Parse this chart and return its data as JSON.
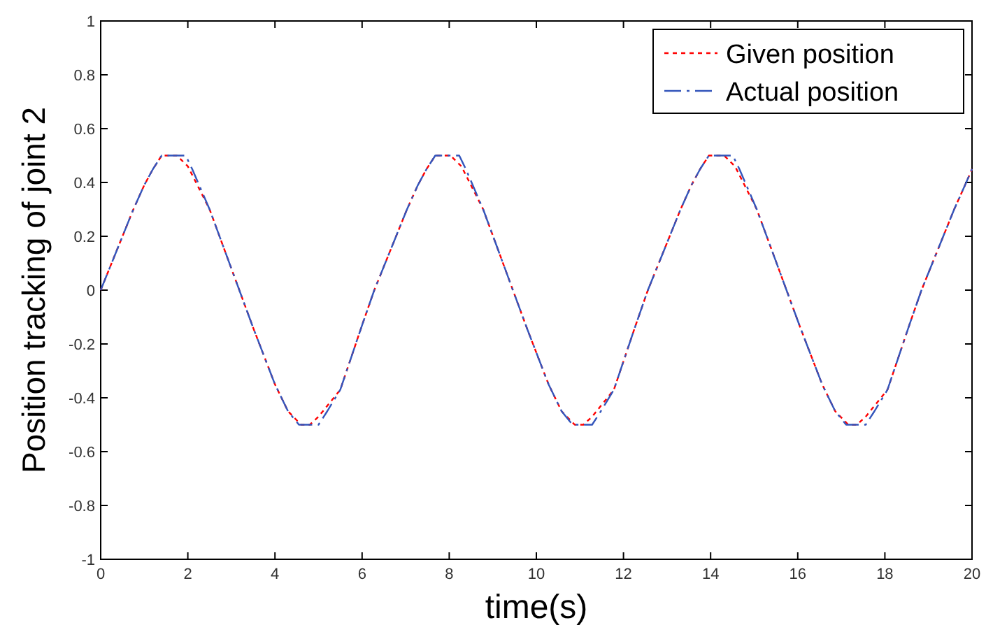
{
  "chart_data": {
    "type": "line",
    "xlabel": "time(s)",
    "ylabel": "Position tracking of joint 2",
    "xlim": [
      0,
      20
    ],
    "ylim": [
      -1,
      1
    ],
    "xticks": [
      0,
      2,
      4,
      6,
      8,
      10,
      12,
      14,
      16,
      18,
      20
    ],
    "yticks": [
      -1,
      -0.8,
      -0.6,
      -0.4,
      -0.2,
      0,
      0.2,
      0.4,
      0.6,
      0.8,
      1
    ],
    "grid": false,
    "legend": "top right",
    "marker": "none",
    "series": [
      {
        "name": "Given position",
        "color": "#ff0000",
        "line_style": "dotted",
        "x": [
          0,
          0.25,
          0.5,
          0.75,
          1.0,
          1.2,
          1.4,
          1.75,
          2.0,
          2.5,
          3.0,
          3.5,
          4.0,
          4.3,
          4.6,
          4.8,
          5.0,
          5.5,
          6.0,
          6.28,
          6.53,
          6.78,
          7.03,
          7.28,
          7.48,
          7.68,
          8.03,
          8.28,
          8.78,
          9.28,
          9.78,
          10.28,
          10.58,
          10.88,
          11.08,
          11.28,
          11.78,
          12.28,
          12.56,
          12.81,
          13.06,
          13.31,
          13.56,
          13.76,
          13.96,
          14.31,
          14.56,
          15.06,
          15.56,
          16.06,
          16.56,
          16.86,
          17.16,
          17.36,
          17.56,
          18.06,
          18.56,
          18.84,
          19.09,
          19.34,
          19.59,
          19.84,
          20
        ],
        "values": [
          0,
          0.1,
          0.2,
          0.3,
          0.39,
          0.45,
          0.5,
          0.5,
          0.46,
          0.3,
          0.08,
          -0.14,
          -0.35,
          -0.45,
          -0.5,
          -0.5,
          -0.47,
          -0.37,
          -0.13,
          0,
          0.1,
          0.2,
          0.3,
          0.39,
          0.45,
          0.5,
          0.5,
          0.46,
          0.3,
          0.08,
          -0.14,
          -0.35,
          -0.45,
          -0.5,
          -0.5,
          -0.47,
          -0.37,
          -0.13,
          0,
          0.1,
          0.2,
          0.3,
          0.39,
          0.45,
          0.5,
          0.5,
          0.46,
          0.3,
          0.08,
          -0.14,
          -0.35,
          -0.45,
          -0.5,
          -0.5,
          -0.47,
          -0.37,
          -0.13,
          0,
          0.1,
          0.2,
          0.3,
          0.39,
          0.45
        ]
      },
      {
        "name": "Actual position",
        "color": "#3355bb",
        "line_style": "dashdot",
        "x": [
          0,
          0.25,
          0.5,
          0.75,
          1.0,
          1.2,
          1.4,
          1.95,
          2.1,
          2.5,
          3.0,
          3.5,
          4.0,
          4.3,
          4.55,
          5.0,
          5.2,
          5.5,
          6.0,
          6.28,
          6.53,
          6.78,
          7.03,
          7.28,
          7.48,
          7.68,
          8.23,
          8.38,
          8.78,
          9.28,
          9.78,
          10.28,
          10.58,
          10.83,
          11.28,
          11.48,
          11.78,
          12.28,
          12.56,
          12.81,
          13.06,
          13.31,
          13.56,
          13.76,
          13.96,
          14.51,
          14.66,
          15.06,
          15.56,
          16.06,
          16.56,
          16.86,
          17.11,
          17.56,
          17.76,
          18.06,
          18.56,
          18.84,
          19.09,
          19.34,
          19.59,
          19.84,
          20
        ],
        "values": [
          0,
          0.1,
          0.2,
          0.3,
          0.39,
          0.45,
          0.5,
          0.5,
          0.45,
          0.3,
          0.08,
          -0.14,
          -0.35,
          -0.45,
          -0.5,
          -0.5,
          -0.45,
          -0.37,
          -0.13,
          0,
          0.1,
          0.2,
          0.3,
          0.39,
          0.45,
          0.5,
          0.5,
          0.45,
          0.3,
          0.08,
          -0.14,
          -0.35,
          -0.45,
          -0.5,
          -0.5,
          -0.45,
          -0.37,
          -0.13,
          0,
          0.1,
          0.2,
          0.3,
          0.39,
          0.45,
          0.5,
          0.5,
          0.45,
          0.3,
          0.08,
          -0.14,
          -0.35,
          -0.45,
          -0.5,
          -0.5,
          -0.45,
          -0.37,
          -0.13,
          0,
          0.1,
          0.2,
          0.3,
          0.39,
          0.45
        ]
      }
    ]
  }
}
